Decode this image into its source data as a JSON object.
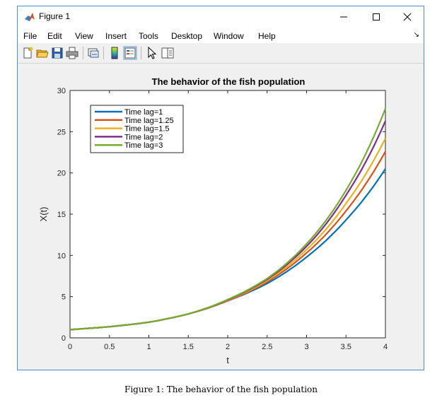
{
  "window": {
    "title": "Figure 1"
  },
  "menu": [
    "File",
    "Edit",
    "View",
    "Insert",
    "Tools",
    "Desktop",
    "Window",
    "Help"
  ],
  "toolbar_icons": [
    "new-figure-icon",
    "open-file-icon",
    "save-icon",
    "print-icon",
    "link-plot-icon",
    "colorbar-icon",
    "legend-icon",
    "pointer-icon",
    "property-editor-icon"
  ],
  "caption": "Figure 1: The behavior of the fish population",
  "chart_data": {
    "type": "line",
    "title": "The behavior of the fish population",
    "xlabel": "t",
    "ylabel": "X(t)",
    "xlim": [
      0,
      4
    ],
    "ylim": [
      0,
      30
    ],
    "xticks": [
      0,
      0.5,
      1,
      1.5,
      2,
      2.5,
      3,
      3.5,
      4
    ],
    "yticks": [
      0,
      5,
      10,
      15,
      20,
      25,
      30
    ],
    "grid": false,
    "legend_position": "top-left",
    "x": [
      0,
      0.5,
      1,
      1.5,
      2,
      2.5,
      3,
      3.5,
      4
    ],
    "series": [
      {
        "name": "Time lag=1",
        "color": "#0072bd",
        "values": [
          1.0,
          1.35,
          1.9,
          2.9,
          4.5,
          6.6,
          9.8,
          14.3,
          20.5
        ]
      },
      {
        "name": "Time lag=1.25",
        "color": "#d95319",
        "values": [
          1.0,
          1.35,
          1.9,
          2.9,
          4.5,
          6.8,
          10.3,
          15.4,
          22.6
        ]
      },
      {
        "name": "Time lag=1.5",
        "color": "#edb120",
        "values": [
          1.0,
          1.35,
          1.9,
          2.9,
          4.55,
          6.95,
          10.7,
          16.3,
          24.2
        ]
      },
      {
        "name": "Time lag=2",
        "color": "#7e2f8e",
        "values": [
          1.0,
          1.35,
          1.9,
          2.9,
          4.6,
          7.1,
          11.1,
          17.3,
          26.3
        ]
      },
      {
        "name": "Time lag=3",
        "color": "#77ac30",
        "values": [
          1.0,
          1.35,
          1.9,
          2.9,
          4.65,
          7.2,
          11.4,
          17.9,
          27.8
        ]
      }
    ]
  }
}
